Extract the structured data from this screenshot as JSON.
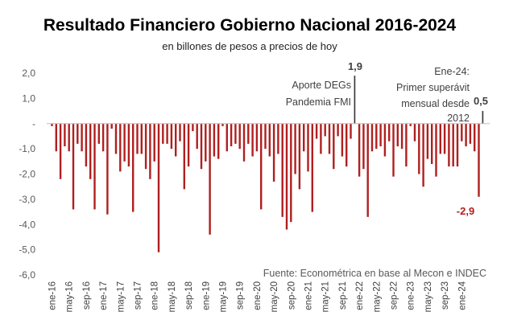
{
  "chart_data": {
    "type": "bar",
    "title": "Resultado Financiero Gobierno Nacional 2016-2024",
    "subtitle": "en billones de pesos a precios de hoy",
    "xlabel": "",
    "ylabel": "",
    "ylim": [
      -6.0,
      2.0
    ],
    "y_ticks": [
      "2,0",
      "1,0",
      "-",
      "-1,0",
      "-2,0",
      "-3,0",
      "-4,0",
      "-5,0",
      "-6,0"
    ],
    "x_tick_labels": [
      "ene-16",
      "may-16",
      "sep-16",
      "ene-17",
      "may-17",
      "sep-17",
      "ene-18",
      "may-18",
      "sep-18",
      "ene-19",
      "may-19",
      "sep-19",
      "ene-20",
      "may-20",
      "sep-20",
      "ene-21",
      "may-21",
      "sep-21",
      "ene-22",
      "may-22",
      "sep-22",
      "ene-23",
      "may-23",
      "sep-23",
      "ene-24"
    ],
    "grid": false,
    "bar_color": "#b01f1f",
    "source": "Fuente: Econométrica en base al Mecon e INDEC",
    "values": [
      -0.1,
      -1.1,
      -2.2,
      -0.9,
      -1.1,
      -3.4,
      -0.8,
      -1.1,
      -1.7,
      -2.2,
      -3.4,
      -0.8,
      -1.1,
      -3.6,
      -0.2,
      -1.2,
      -1.9,
      -1.5,
      -1.7,
      -3.5,
      -1.2,
      -1.2,
      -1.8,
      -2.2,
      -1.5,
      -5.1,
      -0.8,
      -0.8,
      -1.0,
      -1.3,
      -0.7,
      -2.6,
      -1.7,
      -0.3,
      -1.0,
      -1.8,
      -1.5,
      -4.4,
      -1.3,
      -1.4,
      -0.1,
      -1.1,
      -0.9,
      -0.8,
      -1.0,
      -1.5,
      -0.8,
      -1.3,
      -1.1,
      -3.4,
      -1.0,
      -1.3,
      -2.3,
      -1.2,
      -3.7,
      -4.2,
      -3.9,
      -2.0,
      -2.6,
      -1.1,
      -1.9,
      -3.5,
      -0.6,
      -1.2,
      -0.5,
      -1.2,
      -1.8,
      -0.5,
      -1.3,
      -1.7,
      -0.6,
      1.9,
      -2.1,
      -1.8,
      -3.7,
      -1.1,
      -1.0,
      -0.9,
      -1.3,
      -0.7,
      -2.1,
      -0.9,
      -1.0,
      -1.7,
      -0.1,
      -0.7,
      -2.0,
      -2.5,
      -1.4,
      -1.6,
      -2.1,
      -1.2,
      -1.2,
      -1.7,
      -1.7,
      -1.7,
      -0.7,
      -0.9,
      -0.8,
      -1.1,
      -2.9,
      0.5
    ],
    "annotations": [
      {
        "value_label": "1,9",
        "text": [
          "Aporte DEGs",
          "Pandemia FMI"
        ]
      },
      {
        "value_label": "0,5",
        "text": [
          "Ene-24:",
          "Primer superávit",
          "mensual desde",
          "2012"
        ]
      },
      {
        "value_label": "-2,9"
      }
    ]
  }
}
